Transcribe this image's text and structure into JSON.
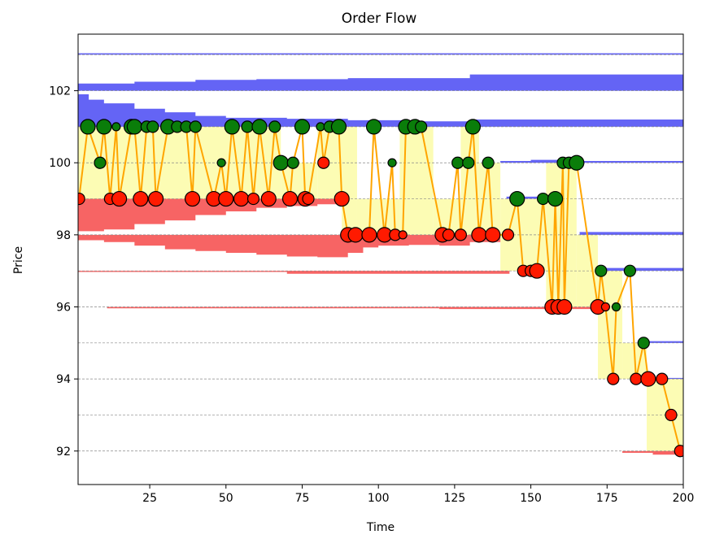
{
  "chart_data": {
    "type": "scatter",
    "title": "Order Flow",
    "xlabel": "Time",
    "ylabel": "Price",
    "xlim": [
      1.5,
      200
    ],
    "ylim": [
      91.07,
      103.57
    ],
    "xticks": [
      25,
      50,
      75,
      100,
      125,
      150,
      175,
      200
    ],
    "yticks": [
      92,
      94,
      96,
      98,
      100,
      102
    ],
    "grid_levels": [
      92,
      93,
      94,
      95,
      96,
      97,
      98,
      99,
      100,
      101,
      102,
      103
    ],
    "colors": {
      "ask": "#6464f5",
      "bid": "#f76464",
      "spread": "#fcfcb4",
      "buy": "#0a7d0a",
      "sell": "#ff1a00",
      "line": "#ffa500"
    },
    "ask_depth": [
      {
        "level": 103,
        "steps": [
          [
            1.5,
            0.04
          ],
          [
            200,
            0.04
          ]
        ]
      },
      {
        "level": 102,
        "steps": [
          [
            1.5,
            0.2
          ],
          [
            20,
            0.25
          ],
          [
            40,
            0.3
          ],
          [
            60,
            0.32
          ],
          [
            90,
            0.35
          ],
          [
            130,
            0.45
          ],
          [
            200,
            0.45
          ]
        ]
      },
      {
        "level": 101,
        "steps": [
          [
            1.5,
            0.9
          ],
          [
            5,
            0.75
          ],
          [
            10,
            0.65
          ],
          [
            20,
            0.5
          ],
          [
            30,
            0.4
          ],
          [
            40,
            0.3
          ],
          [
            50,
            0.25
          ],
          [
            70,
            0.22
          ],
          [
            90,
            0.18
          ],
          [
            110,
            0.15
          ],
          [
            130,
            0.2
          ],
          [
            200,
            0.2
          ]
        ]
      },
      {
        "level": 100,
        "steps": [
          [
            140,
            0.05
          ],
          [
            150,
            0.08
          ],
          [
            165,
            0.05
          ],
          [
            200,
            0.05
          ]
        ]
      },
      {
        "level": 99,
        "steps": [
          [
            142,
            0.06
          ],
          [
            156,
            0
          ]
        ]
      },
      {
        "level": 98,
        "steps": [
          [
            166,
            0.08
          ],
          [
            200,
            0.08
          ]
        ]
      },
      {
        "level": 97,
        "steps": [
          [
            173,
            0.08
          ],
          [
            200,
            0.08
          ]
        ]
      },
      {
        "level": 95,
        "steps": [
          [
            188,
            0.05
          ],
          [
            200,
            0.05
          ]
        ]
      },
      {
        "level": 94,
        "steps": [
          [
            193,
            0.03
          ],
          [
            200,
            0.03
          ]
        ]
      }
    ],
    "bid_depth": [
      {
        "level": 99,
        "steps": [
          [
            1.5,
            0.9
          ],
          [
            10,
            0.85
          ],
          [
            20,
            0.7
          ],
          [
            30,
            0.6
          ],
          [
            40,
            0.45
          ],
          [
            50,
            0.35
          ],
          [
            60,
            0.25
          ],
          [
            70,
            0.2
          ],
          [
            80,
            0.15
          ],
          [
            88,
            0
          ]
        ]
      },
      {
        "level": 98,
        "steps": [
          [
            1.5,
            0.15
          ],
          [
            10,
            0.2
          ],
          [
            20,
            0.3
          ],
          [
            30,
            0.4
          ],
          [
            40,
            0.45
          ],
          [
            50,
            0.5
          ],
          [
            60,
            0.55
          ],
          [
            70,
            0.6
          ],
          [
            80,
            0.62
          ],
          [
            90,
            0.5
          ],
          [
            95,
            0.35
          ],
          [
            100,
            0.3
          ],
          [
            110,
            0.28
          ],
          [
            120,
            0.3
          ],
          [
            130,
            0.2
          ],
          [
            140,
            0
          ]
        ]
      },
      {
        "level": 97,
        "steps": [
          [
            1.5,
            0.03
          ],
          [
            70,
            0.08
          ],
          [
            143,
            0
          ]
        ]
      },
      {
        "level": 96,
        "steps": [
          [
            11,
            0.04
          ],
          [
            120,
            0.06
          ],
          [
            170,
            0
          ]
        ]
      },
      {
        "level": 92,
        "steps": [
          [
            180,
            0.05
          ],
          [
            190,
            0.1
          ],
          [
            200,
            0.1
          ]
        ]
      }
    ],
    "spread": [
      [
        1.5,
        68,
        99,
        101
      ],
      [
        68,
        80,
        99,
        100
      ],
      [
        80,
        93,
        99,
        101
      ],
      [
        88,
        93,
        98,
        99
      ],
      [
        93,
        107,
        98,
        99
      ],
      [
        107,
        118,
        98,
        101
      ],
      [
        118,
        127,
        98,
        99
      ],
      [
        127,
        133,
        98,
        101
      ],
      [
        133,
        140,
        98,
        100
      ],
      [
        140,
        155,
        97,
        99
      ],
      [
        155,
        165,
        96,
        100
      ],
      [
        165,
        172,
        96,
        98
      ],
      [
        172,
        180,
        94,
        97
      ],
      [
        180,
        188,
        94,
        95
      ],
      [
        188,
        200,
        92,
        94
      ]
    ],
    "trades": [
      [
        1.8,
        99,
        "sell",
        2
      ],
      [
        4.7,
        101,
        "buy",
        3
      ],
      [
        8.7,
        100,
        "buy",
        2
      ],
      [
        10,
        101,
        "buy",
        3
      ],
      [
        12,
        99,
        "sell",
        2
      ],
      [
        14,
        101,
        "buy",
        1
      ],
      [
        15,
        99,
        "sell",
        3
      ],
      [
        19,
        101,
        "buy",
        3
      ],
      [
        20,
        101,
        "buy",
        3
      ],
      [
        22,
        99,
        "sell",
        3
      ],
      [
        24,
        101,
        "buy",
        2
      ],
      [
        26,
        101,
        "buy",
        2
      ],
      [
        27,
        99,
        "sell",
        3
      ],
      [
        31,
        101,
        "buy",
        3
      ],
      [
        34,
        101,
        "buy",
        2
      ],
      [
        37,
        101,
        "buy",
        2
      ],
      [
        39,
        99,
        "sell",
        3
      ],
      [
        40,
        101,
        "buy",
        2
      ],
      [
        46,
        99,
        "sell",
        3
      ],
      [
        48.5,
        100,
        "buy",
        1
      ],
      [
        50,
        99,
        "sell",
        3
      ],
      [
        52,
        101,
        "buy",
        3
      ],
      [
        55,
        99,
        "sell",
        3
      ],
      [
        57,
        101,
        "buy",
        2
      ],
      [
        59,
        99,
        "sell",
        2
      ],
      [
        61,
        101,
        "buy",
        3
      ],
      [
        64,
        99,
        "sell",
        3
      ],
      [
        66,
        101,
        "buy",
        2
      ],
      [
        68,
        100,
        "buy",
        3
      ],
      [
        71,
        99,
        "sell",
        3
      ],
      [
        72,
        100,
        "buy",
        2
      ],
      [
        75,
        101,
        "buy",
        3
      ],
      [
        76,
        99,
        "sell",
        3
      ],
      [
        77,
        99,
        "sell",
        2
      ],
      [
        81,
        101,
        "buy",
        1
      ],
      [
        82,
        100,
        "sell",
        2
      ],
      [
        84,
        101,
        "buy",
        2
      ],
      [
        87,
        101,
        "buy",
        3
      ],
      [
        88,
        99,
        "sell",
        3
      ],
      [
        90,
        98,
        "sell",
        3
      ],
      [
        92.5,
        98,
        "sell",
        3
      ],
      [
        97,
        98,
        "sell",
        3
      ],
      [
        98.5,
        101,
        "buy",
        3
      ],
      [
        102,
        98,
        "sell",
        3
      ],
      [
        104.5,
        100,
        "buy",
        1
      ],
      [
        105.5,
        98,
        "sell",
        2
      ],
      [
        108,
        98,
        "sell",
        1
      ],
      [
        109,
        101,
        "buy",
        3
      ],
      [
        112,
        101,
        "buy",
        3
      ],
      [
        114,
        101,
        "buy",
        2
      ],
      [
        121,
        98,
        "sell",
        3
      ],
      [
        123,
        98,
        "sell",
        2
      ],
      [
        126,
        100,
        "buy",
        2
      ],
      [
        127,
        98,
        "sell",
        2
      ],
      [
        129.5,
        100,
        "buy",
        2
      ],
      [
        131,
        101,
        "buy",
        3
      ],
      [
        133,
        98,
        "sell",
        3
      ],
      [
        136,
        100,
        "buy",
        2
      ],
      [
        137.5,
        98,
        "sell",
        3
      ],
      [
        142.5,
        98,
        "sell",
        2
      ],
      [
        145.5,
        99,
        "buy",
        3
      ],
      [
        147.5,
        97,
        "sell",
        2
      ],
      [
        150,
        97,
        "sell",
        2
      ],
      [
        152,
        97,
        "sell",
        3
      ],
      [
        154,
        99,
        "buy",
        2
      ],
      [
        157,
        96,
        "sell",
        3
      ],
      [
        158,
        99,
        "buy",
        3
      ],
      [
        159,
        96,
        "sell",
        3
      ],
      [
        160.5,
        100,
        "buy",
        2
      ],
      [
        161,
        96,
        "sell",
        3
      ],
      [
        162.5,
        100,
        "buy",
        2
      ],
      [
        165,
        100,
        "buy",
        3
      ],
      [
        172,
        96,
        "sell",
        3
      ],
      [
        173,
        97,
        "buy",
        2
      ],
      [
        174.5,
        96,
        "sell",
        1
      ],
      [
        177,
        94,
        "sell",
        2
      ],
      [
        178,
        96,
        "buy",
        1
      ],
      [
        182.5,
        97,
        "buy",
        2
      ],
      [
        184.5,
        94,
        "sell",
        2
      ],
      [
        187,
        95,
        "buy",
        2
      ],
      [
        188.5,
        94,
        "sell",
        3
      ],
      [
        193,
        94,
        "sell",
        2
      ],
      [
        196,
        93,
        "sell",
        2
      ],
      [
        199,
        92,
        "sell",
        2
      ]
    ]
  }
}
